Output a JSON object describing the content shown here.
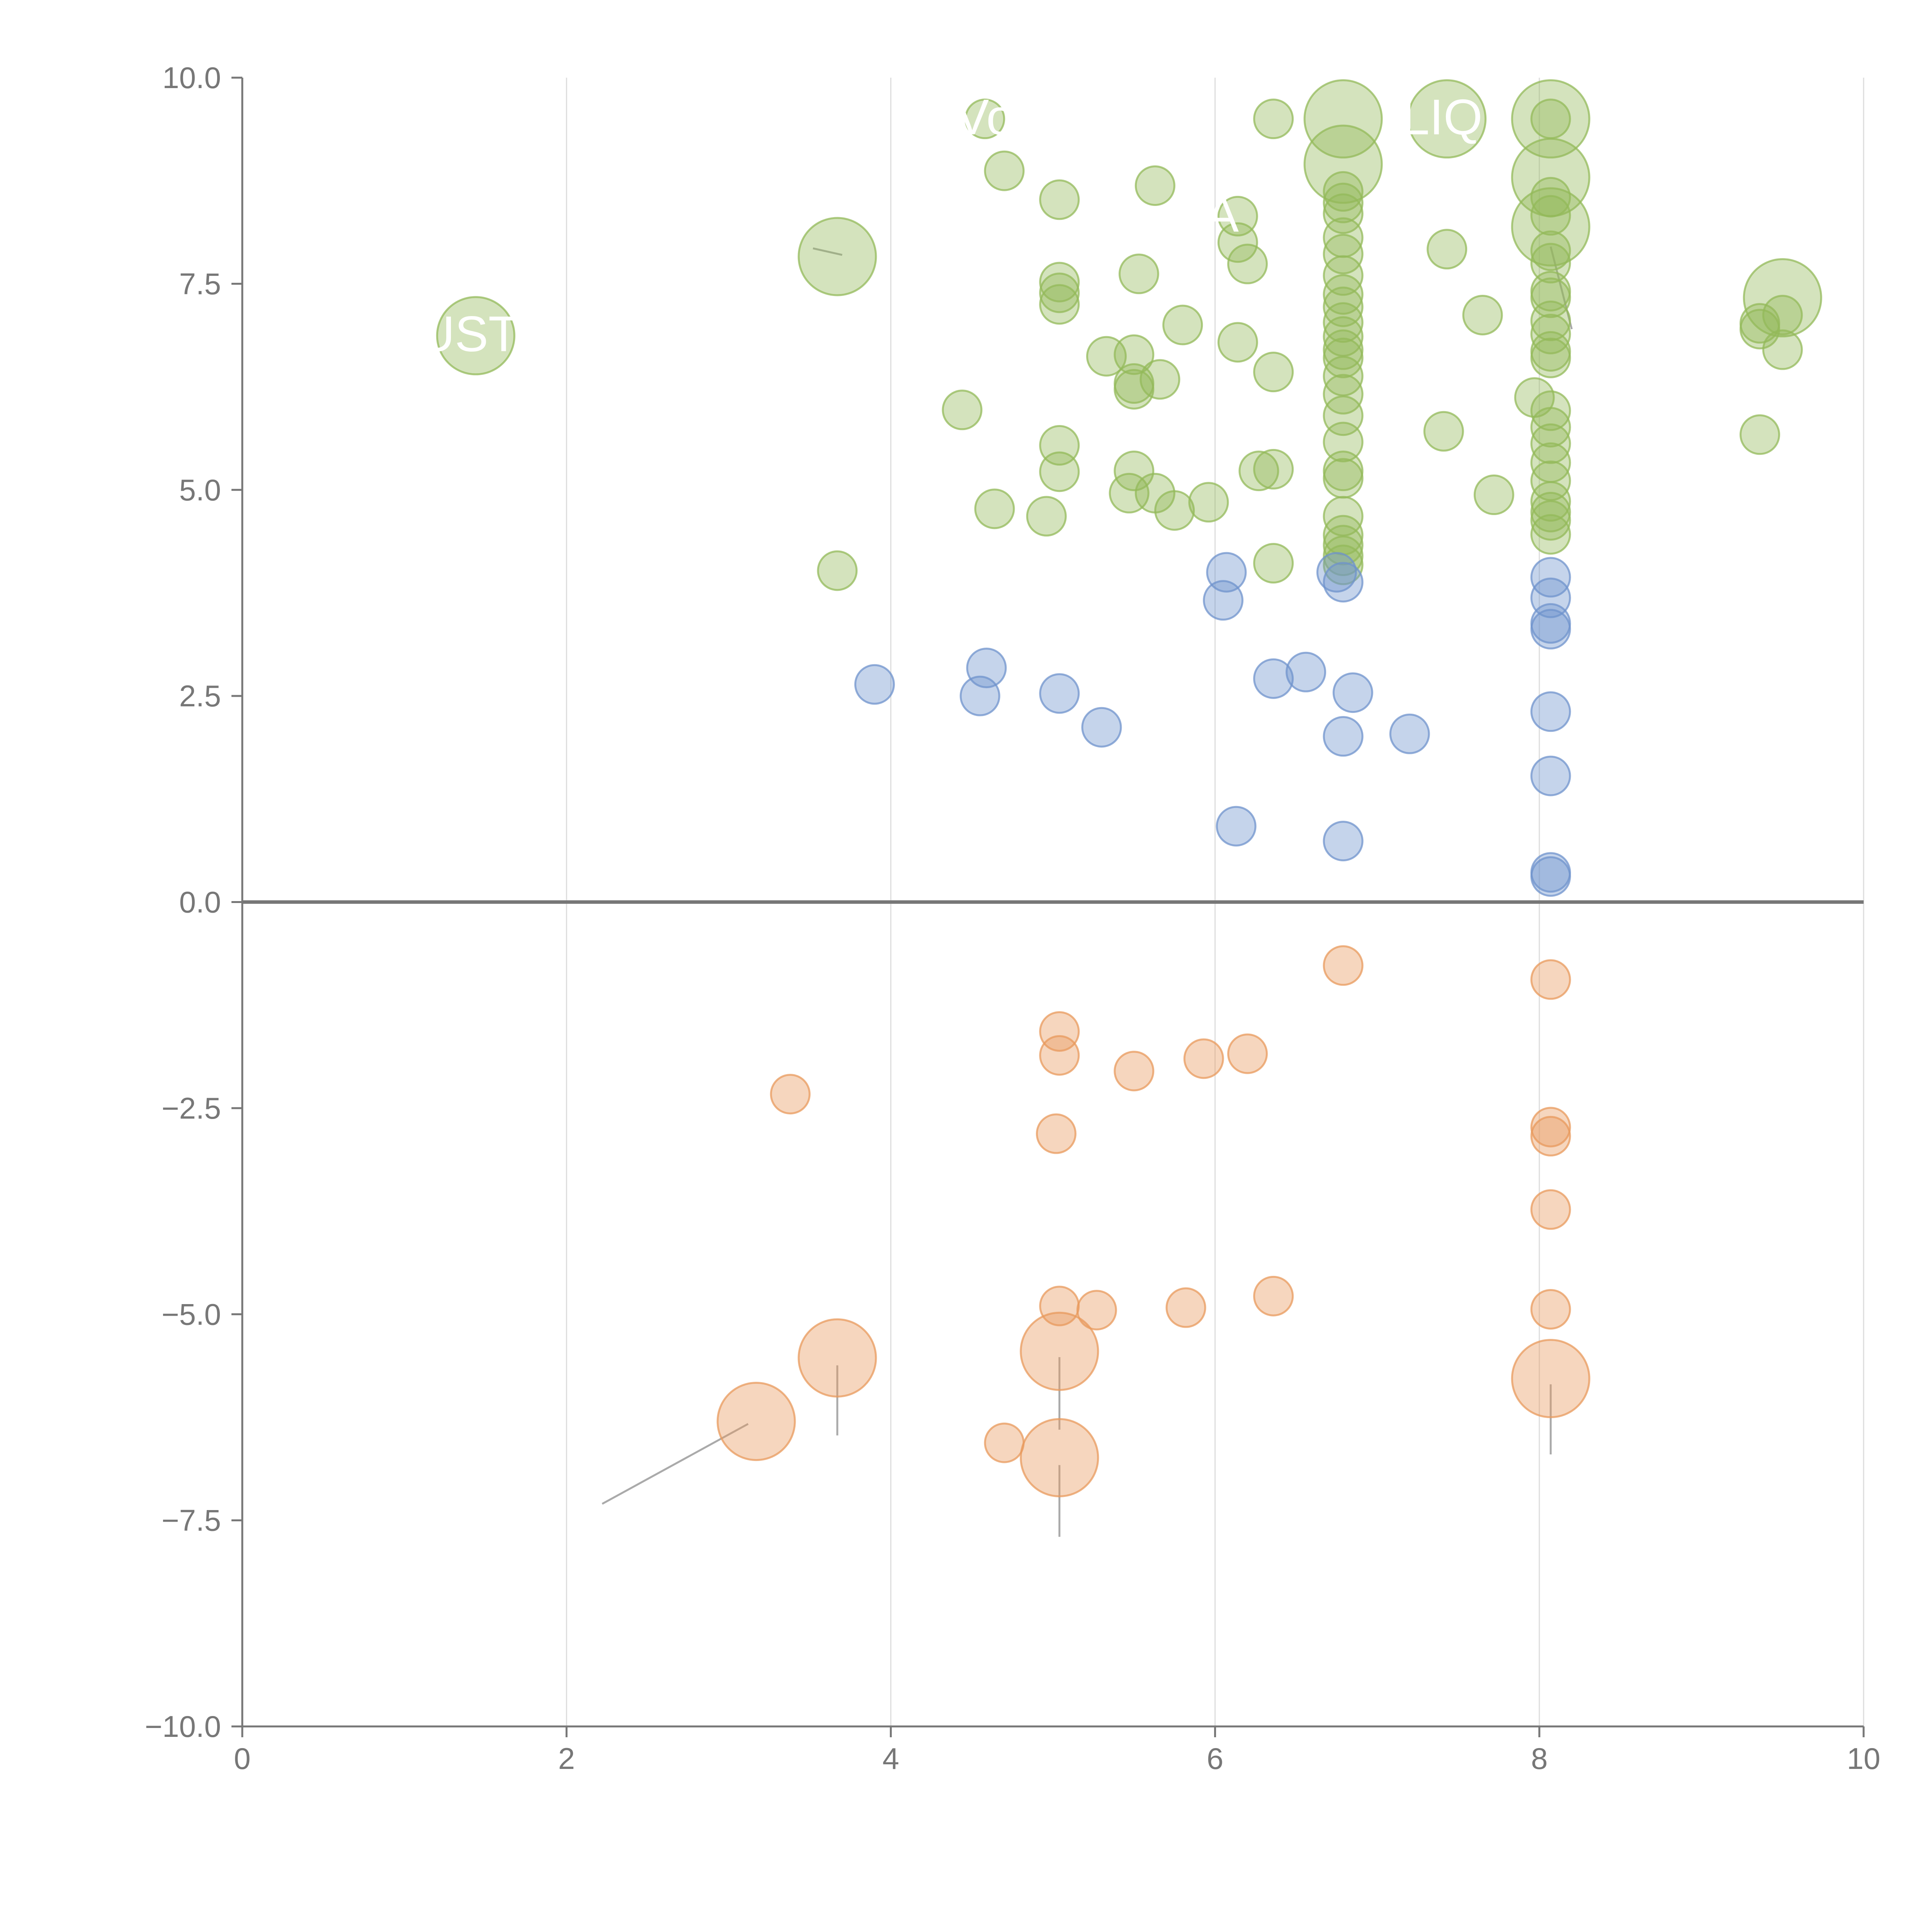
{
  "chart_data": {
    "type": "scatter",
    "title": "",
    "xlabel": "",
    "ylabel": "",
    "xlim": [
      0,
      10
    ],
    "ylim": [
      -10,
      10
    ],
    "x_ticks": [
      "0",
      "2",
      "4",
      "6",
      "8",
      "10"
    ],
    "y_ticks": [
      "10.0",
      "7.5",
      "5.0",
      "2.5",
      "0.0",
      "−2.5",
      "−5.0",
      "−7.5",
      "−10.0"
    ],
    "grid": "vertical",
    "zero_line": true,
    "legend": "none",
    "colors": {
      "green": "#93b95a",
      "blue": "#6f93cc",
      "orange": "#e8995c",
      "axis": "#777777",
      "grid": "#dddddd",
      "zero_line": "#777777",
      "leader": "#aaaaaa"
    },
    "series": [
      {
        "name": "green",
        "color": "#93b95a",
        "points": [
          [
            1.44,
            6.87,
            2
          ],
          [
            3.67,
            7.83,
            2
          ],
          [
            3.67,
            4.02,
            1
          ],
          [
            4.44,
            5.97,
            1
          ],
          [
            4.58,
            9.5,
            1
          ],
          [
            4.64,
            4.77,
            1
          ],
          [
            4.7,
            8.87,
            1
          ],
          [
            4.96,
            4.68,
            1
          ],
          [
            5.04,
            8.52,
            1
          ],
          [
            5.04,
            7.52,
            1
          ],
          [
            5.04,
            7.39,
            1
          ],
          [
            5.04,
            7.25,
            1
          ],
          [
            5.04,
            5.54,
            1
          ],
          [
            5.04,
            5.22,
            1
          ],
          [
            5.33,
            6.62,
            1
          ],
          [
            5.47,
            4.96,
            1
          ],
          [
            5.5,
            6.64,
            1
          ],
          [
            5.5,
            6.29,
            1
          ],
          [
            5.5,
            6.22,
            1
          ],
          [
            5.5,
            5.23,
            1
          ],
          [
            5.53,
            7.62,
            1
          ],
          [
            5.63,
            8.69,
            1
          ],
          [
            5.63,
            4.96,
            1
          ],
          [
            5.66,
            6.34,
            1
          ],
          [
            5.75,
            4.75,
            1
          ],
          [
            5.8,
            7.0,
            1
          ],
          [
            5.96,
            4.85,
            1
          ],
          [
            6.14,
            8.32,
            1
          ],
          [
            6.14,
            8.0,
            1
          ],
          [
            6.14,
            6.79,
            1
          ],
          [
            6.2,
            7.74,
            1
          ],
          [
            6.27,
            5.23,
            1
          ],
          [
            6.36,
            9.5,
            1
          ],
          [
            6.36,
            6.43,
            1
          ],
          [
            6.36,
            5.25,
            1
          ],
          [
            6.36,
            4.11,
            1
          ],
          [
            6.79,
            9.5,
            2
          ],
          [
            6.79,
            8.95,
            2
          ],
          [
            6.79,
            8.62,
            1
          ],
          [
            6.79,
            8.48,
            1
          ],
          [
            6.79,
            8.35,
            1
          ],
          [
            6.79,
            8.06,
            1
          ],
          [
            6.79,
            7.86,
            1
          ],
          [
            6.79,
            7.6,
            1
          ],
          [
            6.79,
            7.37,
            1
          ],
          [
            6.79,
            7.22,
            1
          ],
          [
            6.79,
            7.03,
            1
          ],
          [
            6.79,
            6.86,
            1
          ],
          [
            6.79,
            6.7,
            1
          ],
          [
            6.79,
            6.6,
            1
          ],
          [
            6.79,
            6.38,
            1
          ],
          [
            6.79,
            6.16,
            1
          ],
          [
            6.79,
            5.9,
            1
          ],
          [
            6.79,
            5.58,
            1
          ],
          [
            6.79,
            5.23,
            1
          ],
          [
            6.79,
            5.14,
            1
          ],
          [
            6.79,
            4.68,
            1
          ],
          [
            6.79,
            4.45,
            1
          ],
          [
            6.79,
            4.33,
            1
          ],
          [
            6.79,
            4.2,
            1
          ],
          [
            6.79,
            4.09,
            1
          ],
          [
            7.41,
            5.71,
            1
          ],
          [
            7.43,
            7.92,
            1
          ],
          [
            7.43,
            9.5,
            2
          ],
          [
            7.65,
            7.12,
            1
          ],
          [
            7.72,
            4.94,
            1
          ],
          [
            7.97,
            6.12,
            1
          ],
          [
            8.07,
            9.5,
            2
          ],
          [
            8.07,
            8.79,
            2
          ],
          [
            8.07,
            8.19,
            2
          ],
          [
            8.07,
            9.5,
            1
          ],
          [
            8.07,
            8.55,
            1
          ],
          [
            8.07,
            8.33,
            1
          ],
          [
            8.07,
            7.9,
            1
          ],
          [
            8.07,
            7.75,
            1
          ],
          [
            8.07,
            7.41,
            1
          ],
          [
            8.07,
            7.33,
            1
          ],
          [
            8.07,
            7.05,
            1
          ],
          [
            8.07,
            6.89,
            1
          ],
          [
            8.07,
            6.68,
            1
          ],
          [
            8.07,
            6.6,
            1
          ],
          [
            8.07,
            5.96,
            1
          ],
          [
            8.07,
            5.76,
            1
          ],
          [
            8.07,
            5.56,
            1
          ],
          [
            8.07,
            5.33,
            1
          ],
          [
            8.07,
            5.11,
            1
          ],
          [
            8.07,
            4.86,
            1
          ],
          [
            8.07,
            4.73,
            1
          ],
          [
            8.07,
            4.63,
            1
          ],
          [
            8.07,
            4.46,
            1
          ],
          [
            9.36,
            7.02,
            1
          ],
          [
            9.36,
            6.95,
            1
          ],
          [
            9.36,
            5.67,
            1
          ],
          [
            9.5,
            7.33,
            2
          ],
          [
            9.5,
            7.12,
            1
          ],
          [
            9.5,
            6.7,
            1
          ]
        ]
      },
      {
        "name": "blue",
        "color": "#6f93cc",
        "points": [
          [
            3.9,
            2.64,
            1
          ],
          [
            4.55,
            2.5,
            1
          ],
          [
            4.59,
            2.84,
            1
          ],
          [
            5.04,
            2.53,
            1
          ],
          [
            5.3,
            2.12,
            1
          ],
          [
            6.05,
            3.66,
            1
          ],
          [
            6.07,
            4.0,
            1
          ],
          [
            6.13,
            0.92,
            1
          ],
          [
            6.36,
            2.71,
            1
          ],
          [
            6.56,
            2.79,
            1
          ],
          [
            6.75,
            4.0,
            1
          ],
          [
            6.79,
            3.88,
            1
          ],
          [
            6.79,
            2.01,
            1
          ],
          [
            6.79,
            0.74,
            1
          ],
          [
            6.85,
            2.54,
            1
          ],
          [
            7.2,
            2.04,
            1
          ],
          [
            8.07,
            3.94,
            1
          ],
          [
            8.07,
            3.69,
            1
          ],
          [
            8.07,
            3.38,
            1
          ],
          [
            8.07,
            3.31,
            1
          ],
          [
            8.07,
            2.31,
            1
          ],
          [
            8.07,
            1.53,
            1
          ],
          [
            8.07,
            0.36,
            1
          ],
          [
            8.07,
            0.31,
            1
          ]
        ]
      },
      {
        "name": "orange",
        "color": "#e8995c",
        "points": [
          [
            3.38,
            -2.33,
            1
          ],
          [
            3.17,
            -6.3,
            2
          ],
          [
            3.67,
            -5.53,
            2
          ],
          [
            4.7,
            -6.56,
            1
          ],
          [
            5.02,
            -2.81,
            1
          ],
          [
            5.04,
            -1.57,
            1
          ],
          [
            5.04,
            -1.86,
            1
          ],
          [
            5.04,
            -4.9,
            1
          ],
          [
            5.04,
            -5.45,
            2
          ],
          [
            5.04,
            -6.74,
            2
          ],
          [
            5.27,
            -4.95,
            1
          ],
          [
            5.5,
            -2.05,
            1
          ],
          [
            5.82,
            -4.92,
            1
          ],
          [
            5.93,
            -1.9,
            1
          ],
          [
            6.2,
            -1.84,
            1
          ],
          [
            6.36,
            -4.78,
            1
          ],
          [
            6.79,
            -0.77,
            1
          ],
          [
            8.07,
            -0.94,
            1
          ],
          [
            8.07,
            -2.73,
            1
          ],
          [
            8.07,
            -2.84,
            1
          ],
          [
            8.07,
            -3.73,
            1
          ],
          [
            8.07,
            -4.94,
            1
          ],
          [
            8.07,
            -5.78,
            2
          ]
        ]
      }
    ],
    "labels": [
      {
        "text": "USTI",
        "x": 1.44,
        "y": 6.87
      },
      {
        "text": "Vo",
        "x": 4.58,
        "y": 9.5
      },
      {
        "text": "IA",
        "x": 6.0,
        "y": 8.32
      },
      {
        "text": "LIQ",
        "x": 7.4,
        "y": 9.5
      }
    ],
    "leader_lines": [
      [
        [
          2.22,
          -7.3
        ],
        [
          3.12,
          -6.33
        ]
      ],
      [
        [
          3.67,
          -5.62
        ],
        [
          3.67,
          -6.47
        ]
      ],
      [
        [
          5.04,
          -5.52
        ],
        [
          5.04,
          -6.4
        ]
      ],
      [
        [
          5.04,
          -6.83
        ],
        [
          5.04,
          -7.7
        ]
      ],
      [
        [
          8.07,
          -5.85
        ],
        [
          8.07,
          -6.7
        ]
      ],
      [
        [
          3.52,
          7.93
        ],
        [
          3.7,
          7.85
        ]
      ],
      [
        [
          8.07,
          7.95
        ],
        [
          8.2,
          6.95
        ]
      ]
    ]
  }
}
